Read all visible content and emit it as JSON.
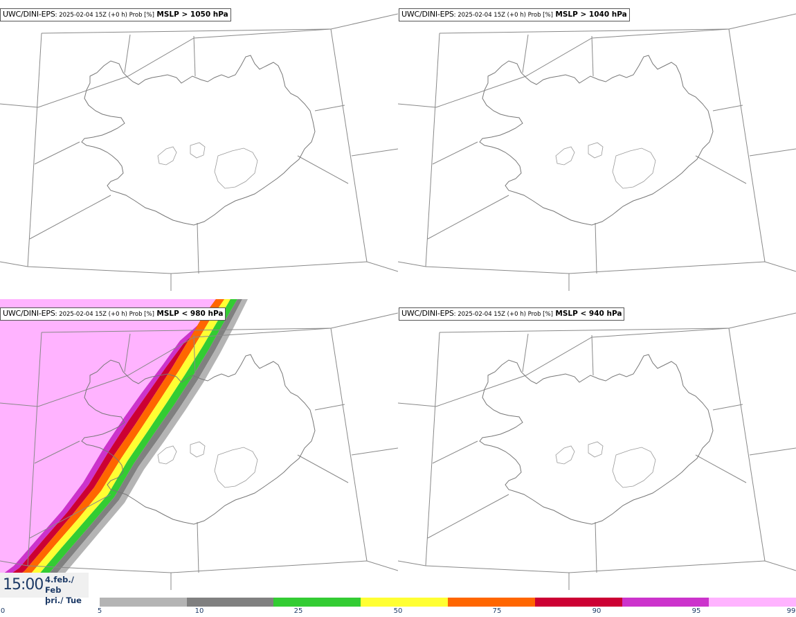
{
  "panels": [
    {
      "source": "UWC/DINI-EPS",
      "meta": ": 2025-02-04 15Z (+0 h) Prob [%]",
      "variable": "MSLP > 1050 hPa"
    },
    {
      "source": "UWC/DINI-EPS",
      "meta": ": 2025-02-04 15Z (+0 h) Prob [%]",
      "variable": "MSLP > 1040 hPa"
    },
    {
      "source": "UWC/DINI-EPS",
      "meta": ": 2025-02-04 15Z (+0 h) Prob [%]",
      "variable": "MSLP < 980 hPa"
    },
    {
      "source": "UWC/DINI-EPS",
      "meta": ": 2025-02-04 15Z (+0 h) Prob [%]",
      "variable": "MSLP < 940 hPa"
    }
  ],
  "time": {
    "hour": "15:00",
    "date_line1": "4.feb./ Feb",
    "date_line2": "þri./ Tue"
  },
  "legend": {
    "ticks": [
      "0",
      "5",
      "10",
      "25",
      "50",
      "75",
      "90",
      "95",
      "99"
    ],
    "colors": [
      "#b4b4b4",
      "#808080",
      "#33cc33",
      "#ffff33",
      "#ff6600",
      "#cc0033",
      "#cc33cc",
      "#ffb3ff"
    ]
  }
}
